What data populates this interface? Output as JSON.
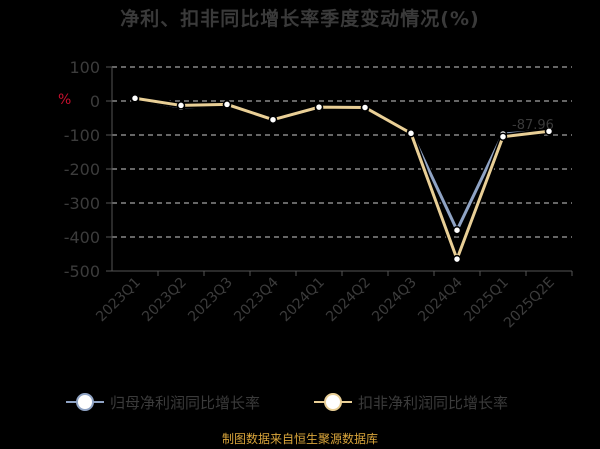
{
  "chart_data": {
    "type": "line",
    "title": "净利、扣非同比增长率季度变动情况(%)",
    "ylabel": "%",
    "xlabel": "",
    "categories": [
      "2023Q1",
      "2023Q2",
      "2023Q3",
      "2023Q4",
      "2024Q1",
      "2024Q2",
      "2024Q3",
      "2024Q4",
      "2025Q1",
      "2025Q2E"
    ],
    "ylim": [
      -500,
      100
    ],
    "yticks": [
      100,
      0,
      -100,
      -200,
      -300,
      -400,
      -500
    ],
    "grid": true,
    "legend_position": "bottom",
    "series": [
      {
        "name": "归母净利润同比增长率",
        "color": "#8fa3c4",
        "values": [
          5,
          -18,
          -12,
          -55,
          -22,
          -22,
          -92,
          -380,
          -97,
          -88
        ],
        "labels": [
          "",
          "",
          "",
          "",
          "",
          "",
          "",
          "",
          "",
          "-87.96"
        ]
      },
      {
        "name": "扣非净利润同比增长率",
        "color": "#e9cf96",
        "values": [
          8,
          -13,
          -10,
          -55,
          -18,
          -19,
          -95,
          -465,
          -105,
          -89
        ],
        "labels": [
          "",
          "",
          "",
          "",
          "",
          "",
          "",
          "",
          "",
          ""
        ]
      }
    ]
  },
  "footer": "制图数据来自恒生聚源数据库"
}
